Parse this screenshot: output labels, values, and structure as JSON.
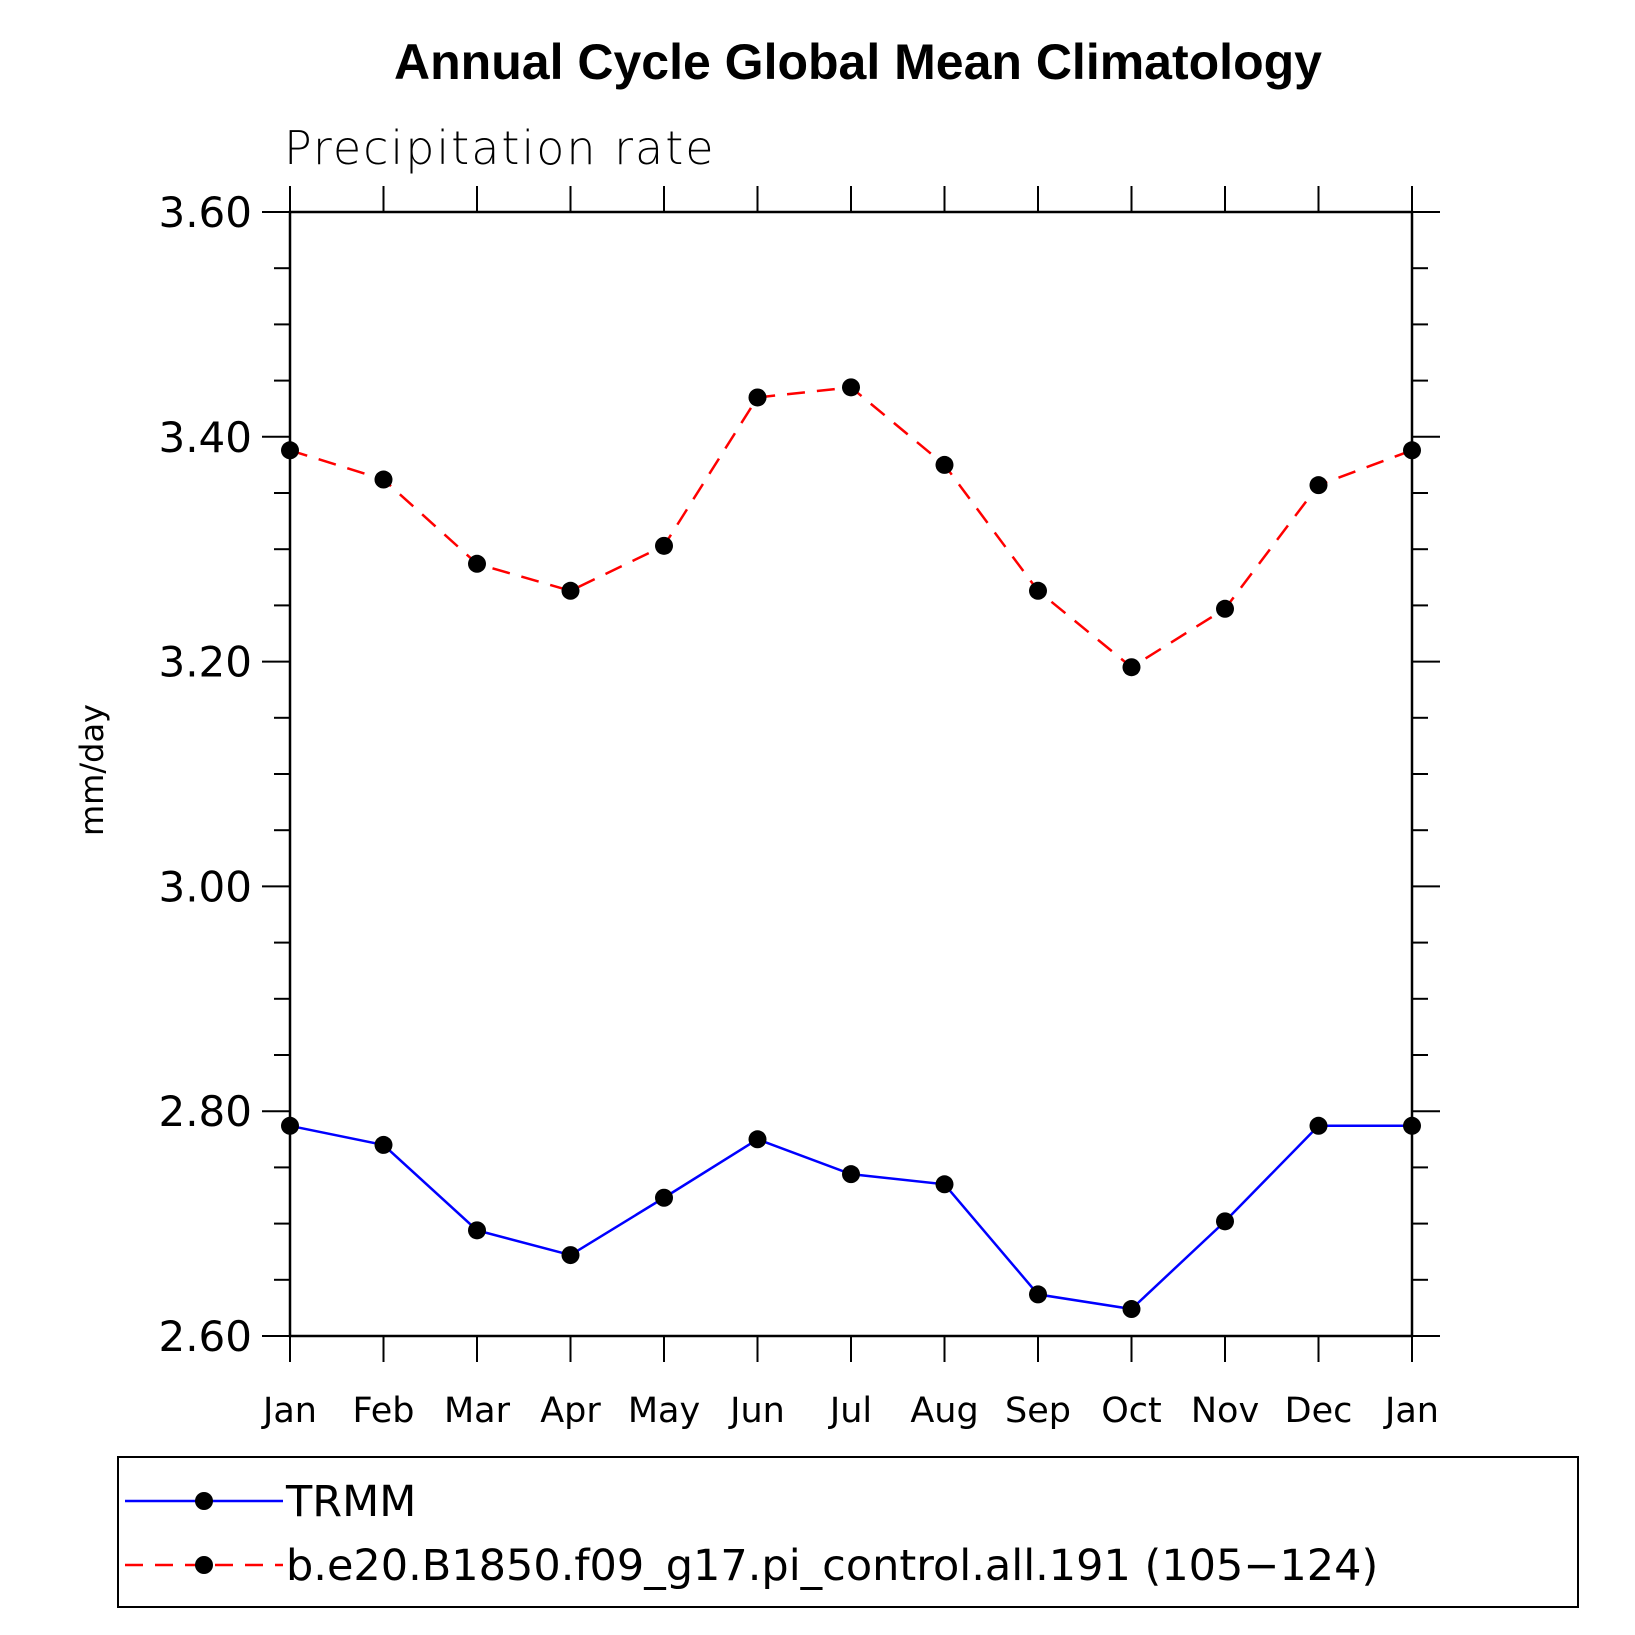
{
  "chart_data": {
    "type": "line",
    "title": "Annual Cycle Global Mean Climatology",
    "subtitle": "Precipitation rate",
    "xlabel": "",
    "ylabel": "mm/day",
    "categories": [
      "Jan",
      "Feb",
      "Mar",
      "Apr",
      "May",
      "Jun",
      "Jul",
      "Aug",
      "Sep",
      "Oct",
      "Nov",
      "Dec",
      "Jan"
    ],
    "ylim": [
      2.6,
      3.6
    ],
    "yticks": [
      "2.60",
      "2.80",
      "3.00",
      "3.20",
      "3.40",
      "3.60"
    ],
    "grid": false,
    "legend_position": "bottom",
    "series": [
      {
        "name": "TRMM",
        "color": "#0000ff",
        "line_style": "solid",
        "marker": "filled-circle",
        "values": [
          2.787,
          2.77,
          2.694,
          2.672,
          2.723,
          2.775,
          2.744,
          2.735,
          2.637,
          2.624,
          2.702,
          2.787,
          2.787
        ]
      },
      {
        "name": "b.e20.B1850.f09_g17.pi_control.all.191 (105−124)",
        "color": "#ff0000",
        "line_style": "dashed",
        "marker": "filled-circle",
        "values": [
          3.388,
          3.362,
          3.287,
          3.263,
          3.303,
          3.435,
          3.444,
          3.375,
          3.263,
          3.195,
          3.247,
          3.357,
          3.388
        ]
      }
    ]
  }
}
